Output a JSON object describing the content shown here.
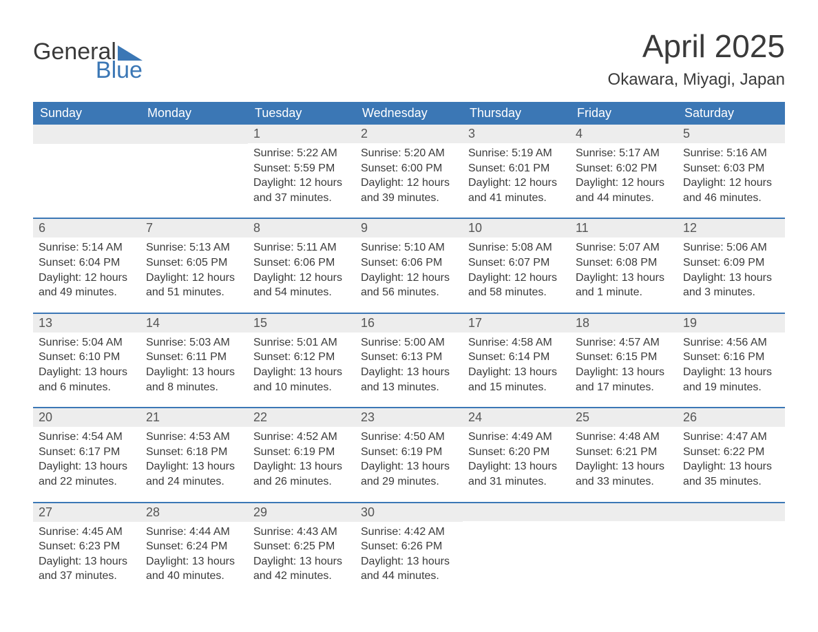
{
  "logo": {
    "word1": "General",
    "word2": "Blue"
  },
  "title": "April 2025",
  "location": "Okawara, Miyagi, Japan",
  "colors": {
    "brand_blue": "#3b77b5",
    "header_text": "#ffffff",
    "body_text": "#3a3a3a",
    "daynum_text": "#555555",
    "day_header_bg": "#ededed",
    "background": "#ffffff"
  },
  "typography": {
    "title_fontsize": 46,
    "location_fontsize": 24,
    "weekday_fontsize": 18,
    "daynum_fontsize": 18,
    "body_fontsize": 16,
    "logo_fontsize": 34
  },
  "weekdays": [
    "Sunday",
    "Monday",
    "Tuesday",
    "Wednesday",
    "Thursday",
    "Friday",
    "Saturday"
  ],
  "weeks": [
    [
      {
        "empty": true
      },
      {
        "empty": true
      },
      {
        "num": "1",
        "sunrise": "Sunrise: 5:22 AM",
        "sunset": "Sunset: 5:59 PM",
        "daylight1": "Daylight: 12 hours",
        "daylight2": "and 37 minutes."
      },
      {
        "num": "2",
        "sunrise": "Sunrise: 5:20 AM",
        "sunset": "Sunset: 6:00 PM",
        "daylight1": "Daylight: 12 hours",
        "daylight2": "and 39 minutes."
      },
      {
        "num": "3",
        "sunrise": "Sunrise: 5:19 AM",
        "sunset": "Sunset: 6:01 PM",
        "daylight1": "Daylight: 12 hours",
        "daylight2": "and 41 minutes."
      },
      {
        "num": "4",
        "sunrise": "Sunrise: 5:17 AM",
        "sunset": "Sunset: 6:02 PM",
        "daylight1": "Daylight: 12 hours",
        "daylight2": "and 44 minutes."
      },
      {
        "num": "5",
        "sunrise": "Sunrise: 5:16 AM",
        "sunset": "Sunset: 6:03 PM",
        "daylight1": "Daylight: 12 hours",
        "daylight2": "and 46 minutes."
      }
    ],
    [
      {
        "num": "6",
        "sunrise": "Sunrise: 5:14 AM",
        "sunset": "Sunset: 6:04 PM",
        "daylight1": "Daylight: 12 hours",
        "daylight2": "and 49 minutes."
      },
      {
        "num": "7",
        "sunrise": "Sunrise: 5:13 AM",
        "sunset": "Sunset: 6:05 PM",
        "daylight1": "Daylight: 12 hours",
        "daylight2": "and 51 minutes."
      },
      {
        "num": "8",
        "sunrise": "Sunrise: 5:11 AM",
        "sunset": "Sunset: 6:06 PM",
        "daylight1": "Daylight: 12 hours",
        "daylight2": "and 54 minutes."
      },
      {
        "num": "9",
        "sunrise": "Sunrise: 5:10 AM",
        "sunset": "Sunset: 6:06 PM",
        "daylight1": "Daylight: 12 hours",
        "daylight2": "and 56 minutes."
      },
      {
        "num": "10",
        "sunrise": "Sunrise: 5:08 AM",
        "sunset": "Sunset: 6:07 PM",
        "daylight1": "Daylight: 12 hours",
        "daylight2": "and 58 minutes."
      },
      {
        "num": "11",
        "sunrise": "Sunrise: 5:07 AM",
        "sunset": "Sunset: 6:08 PM",
        "daylight1": "Daylight: 13 hours",
        "daylight2": "and 1 minute."
      },
      {
        "num": "12",
        "sunrise": "Sunrise: 5:06 AM",
        "sunset": "Sunset: 6:09 PM",
        "daylight1": "Daylight: 13 hours",
        "daylight2": "and 3 minutes."
      }
    ],
    [
      {
        "num": "13",
        "sunrise": "Sunrise: 5:04 AM",
        "sunset": "Sunset: 6:10 PM",
        "daylight1": "Daylight: 13 hours",
        "daylight2": "and 6 minutes."
      },
      {
        "num": "14",
        "sunrise": "Sunrise: 5:03 AM",
        "sunset": "Sunset: 6:11 PM",
        "daylight1": "Daylight: 13 hours",
        "daylight2": "and 8 minutes."
      },
      {
        "num": "15",
        "sunrise": "Sunrise: 5:01 AM",
        "sunset": "Sunset: 6:12 PM",
        "daylight1": "Daylight: 13 hours",
        "daylight2": "and 10 minutes."
      },
      {
        "num": "16",
        "sunrise": "Sunrise: 5:00 AM",
        "sunset": "Sunset: 6:13 PM",
        "daylight1": "Daylight: 13 hours",
        "daylight2": "and 13 minutes."
      },
      {
        "num": "17",
        "sunrise": "Sunrise: 4:58 AM",
        "sunset": "Sunset: 6:14 PM",
        "daylight1": "Daylight: 13 hours",
        "daylight2": "and 15 minutes."
      },
      {
        "num": "18",
        "sunrise": "Sunrise: 4:57 AM",
        "sunset": "Sunset: 6:15 PM",
        "daylight1": "Daylight: 13 hours",
        "daylight2": "and 17 minutes."
      },
      {
        "num": "19",
        "sunrise": "Sunrise: 4:56 AM",
        "sunset": "Sunset: 6:16 PM",
        "daylight1": "Daylight: 13 hours",
        "daylight2": "and 19 minutes."
      }
    ],
    [
      {
        "num": "20",
        "sunrise": "Sunrise: 4:54 AM",
        "sunset": "Sunset: 6:17 PM",
        "daylight1": "Daylight: 13 hours",
        "daylight2": "and 22 minutes."
      },
      {
        "num": "21",
        "sunrise": "Sunrise: 4:53 AM",
        "sunset": "Sunset: 6:18 PM",
        "daylight1": "Daylight: 13 hours",
        "daylight2": "and 24 minutes."
      },
      {
        "num": "22",
        "sunrise": "Sunrise: 4:52 AM",
        "sunset": "Sunset: 6:19 PM",
        "daylight1": "Daylight: 13 hours",
        "daylight2": "and 26 minutes."
      },
      {
        "num": "23",
        "sunrise": "Sunrise: 4:50 AM",
        "sunset": "Sunset: 6:19 PM",
        "daylight1": "Daylight: 13 hours",
        "daylight2": "and 29 minutes."
      },
      {
        "num": "24",
        "sunrise": "Sunrise: 4:49 AM",
        "sunset": "Sunset: 6:20 PM",
        "daylight1": "Daylight: 13 hours",
        "daylight2": "and 31 minutes."
      },
      {
        "num": "25",
        "sunrise": "Sunrise: 4:48 AM",
        "sunset": "Sunset: 6:21 PM",
        "daylight1": "Daylight: 13 hours",
        "daylight2": "and 33 minutes."
      },
      {
        "num": "26",
        "sunrise": "Sunrise: 4:47 AM",
        "sunset": "Sunset: 6:22 PM",
        "daylight1": "Daylight: 13 hours",
        "daylight2": "and 35 minutes."
      }
    ],
    [
      {
        "num": "27",
        "sunrise": "Sunrise: 4:45 AM",
        "sunset": "Sunset: 6:23 PM",
        "daylight1": "Daylight: 13 hours",
        "daylight2": "and 37 minutes."
      },
      {
        "num": "28",
        "sunrise": "Sunrise: 4:44 AM",
        "sunset": "Sunset: 6:24 PM",
        "daylight1": "Daylight: 13 hours",
        "daylight2": "and 40 minutes."
      },
      {
        "num": "29",
        "sunrise": "Sunrise: 4:43 AM",
        "sunset": "Sunset: 6:25 PM",
        "daylight1": "Daylight: 13 hours",
        "daylight2": "and 42 minutes."
      },
      {
        "num": "30",
        "sunrise": "Sunrise: 4:42 AM",
        "sunset": "Sunset: 6:26 PM",
        "daylight1": "Daylight: 13 hours",
        "daylight2": "and 44 minutes."
      },
      {
        "empty": true
      },
      {
        "empty": true
      },
      {
        "empty": true
      }
    ]
  ]
}
